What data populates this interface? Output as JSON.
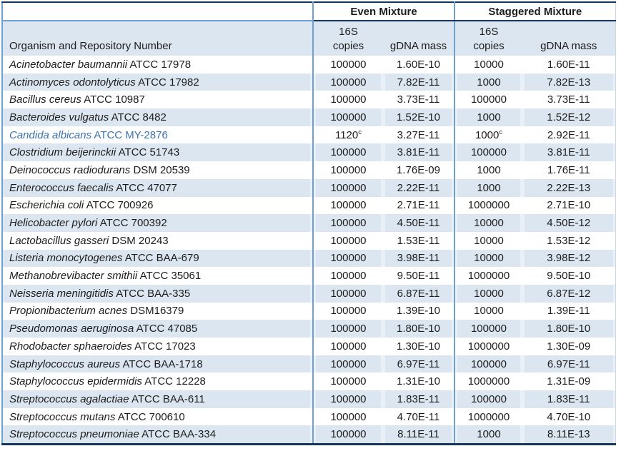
{
  "table": {
    "group_headers": {
      "even": "Even Mixture",
      "staggered": "Staggered Mixture"
    },
    "column_headers": {
      "organism": "Organism and Repository Number",
      "subunit": "16S",
      "copies": "copies",
      "gdna_mass": "gDNA mass"
    },
    "rows": [
      {
        "name": "Acinetobacter baumannii",
        "repo": "ATCC 17978",
        "even_copies": "100000",
        "even_gdna": "1.60E-10",
        "stag_copies": "10000",
        "stag_gdna": "1.60E-11"
      },
      {
        "name": "Actinomyces odontolyticus",
        "repo": "ATCC 17982",
        "even_copies": "100000",
        "even_gdna": "7.82E-11",
        "stag_copies": "1000",
        "stag_gdna": "7.82E-13"
      },
      {
        "name": "Bacillus cereus",
        "repo": "ATCC 10987",
        "even_copies": "100000",
        "even_gdna": "3.73E-11",
        "stag_copies": "100000",
        "stag_gdna": "3.73E-11"
      },
      {
        "name": "Bacteroides vulgatus",
        "repo": "ATCC 8482",
        "even_copies": "100000",
        "even_gdna": "1.52E-10",
        "stag_copies": "1000",
        "stag_gdna": "1.52E-12"
      },
      {
        "name": "Candida albicans",
        "repo": "ATCC MY-2876",
        "even_copies": "1120",
        "even_sup": "c",
        "even_gdna": "3.27E-11",
        "stag_copies": "1000",
        "stag_sup": "c",
        "stag_gdna": "2.92E-11",
        "highlight": true
      },
      {
        "name": "Clostridium beijerinckii",
        "repo": "ATCC 51743",
        "even_copies": "100000",
        "even_gdna": "3.81E-11",
        "stag_copies": "100000",
        "stag_gdna": "3.81E-11"
      },
      {
        "name": "Deinococcus radiodurans",
        "repo": "DSM 20539",
        "even_copies": "100000",
        "even_gdna": "1.76E-09",
        "stag_copies": "1000",
        "stag_gdna": "1.76E-11"
      },
      {
        "name": "Enterococcus faecalis",
        "repo": "ATCC 47077",
        "even_copies": "100000",
        "even_gdna": "2.22E-11",
        "stag_copies": "1000",
        "stag_gdna": "2.22E-13"
      },
      {
        "name": "Escherichia coli",
        "repo": "ATCC 700926",
        "even_copies": "100000",
        "even_gdna": "2.71E-11",
        "stag_copies": "1000000",
        "stag_gdna": "2.71E-10"
      },
      {
        "name": "Helicobacter pylori",
        "repo": "ATCC 700392",
        "even_copies": "100000",
        "even_gdna": "4.50E-11",
        "stag_copies": "10000",
        "stag_gdna": "4.50E-12"
      },
      {
        "name": "Lactobacillus gasseri",
        "repo": "DSM 20243",
        "even_copies": "100000",
        "even_gdna": "1.53E-11",
        "stag_copies": "10000",
        "stag_gdna": "1.53E-12"
      },
      {
        "name": "Listeria monocytogenes",
        "repo": "ATCC BAA-679",
        "even_copies": "100000",
        "even_gdna": "3.98E-11",
        "stag_copies": "10000",
        "stag_gdna": "3.98E-12"
      },
      {
        "name": "Methanobrevibacter smithii",
        "repo": "ATCC 35061",
        "even_copies": "100000",
        "even_gdna": "9.50E-11",
        "stag_copies": "1000000",
        "stag_gdna": "9.50E-10"
      },
      {
        "name": "Neisseria meningitidis",
        "repo": "ATCC BAA-335",
        "even_copies": "100000",
        "even_gdna": "6.87E-11",
        "stag_copies": "10000",
        "stag_gdna": "6.87E-12"
      },
      {
        "name": "Propionibacterium acnes",
        "repo": "DSM16379",
        "even_copies": "100000",
        "even_gdna": "1.39E-10",
        "stag_copies": "10000",
        "stag_gdna": "1.39E-11"
      },
      {
        "name": "Pseudomonas aeruginosa",
        "repo": "ATCC 47085",
        "even_copies": "100000",
        "even_gdna": "1.80E-10",
        "stag_copies": "100000",
        "stag_gdna": "1.80E-10"
      },
      {
        "name": "Rhodobacter sphaeroides",
        "repo": "ATCC 17023",
        "even_copies": "100000",
        "even_gdna": "1.30E-10",
        "stag_copies": "1000000",
        "stag_gdna": "1.30E-09"
      },
      {
        "name": "Staphylococcus aureus",
        "repo": "ATCC BAA-1718",
        "even_copies": "100000",
        "even_gdna": "6.97E-11",
        "stag_copies": "100000",
        "stag_gdna": "6.97E-11"
      },
      {
        "name": "Staphylococcus epidermidis",
        "repo": "ATCC 12228",
        "even_copies": "100000",
        "even_gdna": "1.31E-10",
        "stag_copies": "1000000",
        "stag_gdna": "1.31E-09"
      },
      {
        "name": "Streptococcus agalactiae",
        "repo": "ATCC BAA-611",
        "even_copies": "100000",
        "even_gdna": "1.83E-11",
        "stag_copies": "100000",
        "stag_gdna": "1.83E-11"
      },
      {
        "name": "Streptococcus mutans",
        "repo": "ATCC 700610",
        "even_copies": "100000",
        "even_gdna": "4.70E-11",
        "stag_copies": "1000000",
        "stag_gdna": "4.70E-10"
      },
      {
        "name": "Streptococcus pneumoniae",
        "repo": "ATCC BAA-334",
        "even_copies": "100000",
        "even_gdna": "8.11E-11",
        "stag_copies": "1000",
        "stag_gdna": "8.11E-13"
      }
    ]
  },
  "colors": {
    "stripe": "#DCE6F1",
    "stripeGap": "#E9F0F8",
    "borderBlue": "#6FA0CF",
    "ruleDark": "#17365D",
    "edgeLight": "#C5D7EA",
    "highlight": "#3C72B0"
  }
}
